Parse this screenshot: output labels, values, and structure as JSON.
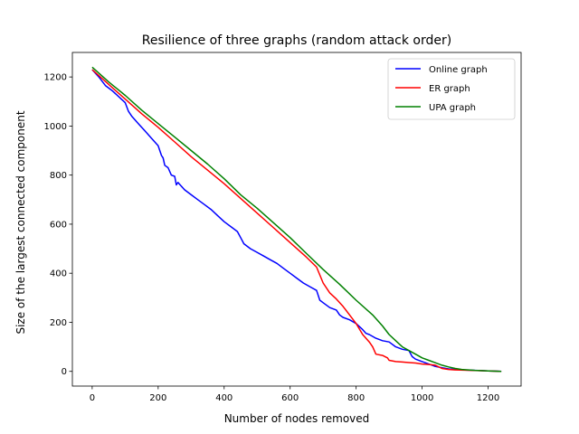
{
  "chart_data": {
    "type": "line",
    "title": "Resilience of three graphs (random attack order)",
    "xlabel": "Number of nodes removed",
    "ylabel": "Size of the largest connected component",
    "xlim": [
      -60,
      1300
    ],
    "ylim": [
      -60,
      1300
    ],
    "xticks": [
      0,
      200,
      400,
      600,
      800,
      1000,
      1200
    ],
    "yticks": [
      0,
      200,
      400,
      600,
      800,
      1000,
      1200
    ],
    "grid": false,
    "legend_position": "top-right",
    "series": [
      {
        "name": "Online graph",
        "color": "#0000ff",
        "x": [
          0,
          20,
          40,
          60,
          80,
          100,
          110,
          120,
          140,
          160,
          180,
          200,
          210,
          215,
          220,
          230,
          240,
          250,
          255,
          260,
          270,
          280,
          300,
          320,
          340,
          360,
          380,
          400,
          420,
          440,
          450,
          460,
          480,
          500,
          520,
          540,
          560,
          580,
          600,
          620,
          640,
          660,
          680,
          690,
          700,
          720,
          740,
          750,
          760,
          780,
          800,
          820,
          830,
          840,
          860,
          880,
          900,
          920,
          940,
          960,
          970,
          980,
          1000,
          1020,
          1040,
          1060,
          1080,
          1100,
          1120,
          1140,
          1160,
          1180,
          1200,
          1220,
          1240
        ],
        "y": [
          1230,
          1200,
          1165,
          1145,
          1120,
          1095,
          1060,
          1040,
          1010,
          980,
          950,
          920,
          880,
          870,
          840,
          830,
          800,
          795,
          760,
          770,
          755,
          740,
          720,
          700,
          680,
          660,
          635,
          610,
          590,
          570,
          545,
          520,
          500,
          485,
          470,
          455,
          440,
          420,
          400,
          380,
          360,
          345,
          330,
          290,
          280,
          260,
          250,
          230,
          220,
          210,
          195,
          170,
          155,
          150,
          135,
          125,
          120,
          100,
          90,
          85,
          60,
          50,
          40,
          30,
          20,
          15,
          10,
          8,
          6,
          5,
          4,
          3,
          2,
          1,
          0
        ]
      },
      {
        "name": "ER graph",
        "color": "#ff0000",
        "x": [
          0,
          50,
          100,
          150,
          200,
          250,
          300,
          350,
          400,
          450,
          500,
          550,
          600,
          650,
          680,
          700,
          720,
          740,
          760,
          780,
          800,
          820,
          840,
          850,
          860,
          880,
          895,
          900,
          920,
          940,
          960,
          980,
          1000,
          1020,
          1040,
          1060,
          1080,
          1100,
          1150,
          1200,
          1240
        ],
        "y": [
          1230,
          1170,
          1110,
          1050,
          995,
          935,
          875,
          820,
          765,
          705,
          645,
          585,
          525,
          465,
          425,
          360,
          320,
          295,
          265,
          230,
          195,
          150,
          120,
          100,
          70,
          65,
          55,
          45,
          40,
          38,
          36,
          34,
          30,
          28,
          25,
          12,
          8,
          6,
          4,
          2,
          0
        ]
      },
      {
        "name": "UPA graph",
        "color": "#008000",
        "x": [
          0,
          50,
          100,
          150,
          200,
          250,
          300,
          350,
          400,
          450,
          500,
          550,
          600,
          650,
          700,
          750,
          800,
          850,
          880,
          900,
          920,
          940,
          960,
          980,
          1000,
          1020,
          1040,
          1060,
          1080,
          1100,
          1120,
          1140,
          1160,
          1200,
          1240
        ],
        "y": [
          1240,
          1180,
          1125,
          1065,
          1010,
          955,
          900,
          845,
          785,
          720,
          665,
          605,
          545,
          480,
          415,
          355,
          290,
          230,
          185,
          150,
          125,
          100,
          85,
          70,
          55,
          45,
          35,
          25,
          18,
          12,
          8,
          6,
          4,
          2,
          0
        ]
      }
    ]
  }
}
